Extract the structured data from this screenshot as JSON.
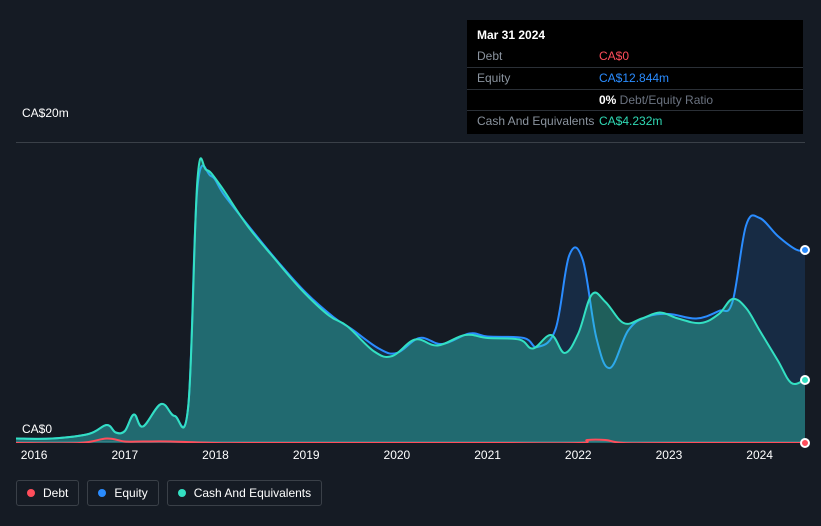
{
  "tooltip": {
    "date": "Mar 31 2024",
    "rows": [
      {
        "label": "Debt",
        "value": "CA$0",
        "color": "#ff4d5b"
      },
      {
        "label": "Equity",
        "value": "CA$12.844m",
        "color": "#2a8cff"
      },
      {
        "label": "",
        "pct": "0%",
        "ratio": " Debt/Equity Ratio"
      },
      {
        "label": "Cash And Equivalents",
        "value": "CA$4.232m",
        "color": "#2fd9b4"
      }
    ]
  },
  "chart": {
    "type": "area",
    "background_color": "#151b24",
    "grid_color": "#3a4048",
    "ymax_label": "CA$20m",
    "ymin_label": "CA$0",
    "ylim": [
      0,
      20
    ],
    "label_fontsize": 12,
    "x_years": [
      2016,
      2017,
      2018,
      2019,
      2020,
      2021,
      2022,
      2023,
      2024
    ],
    "x_range": [
      2015.8,
      2024.5
    ],
    "series": {
      "debt": {
        "color": "#ff4d5b",
        "opacity": 1,
        "line_width": 2,
        "points": [
          [
            2015.8,
            0
          ],
          [
            2016.5,
            0
          ],
          [
            2016.8,
            0.3
          ],
          [
            2017.0,
            0.1
          ],
          [
            2017.2,
            0.1
          ],
          [
            2017.5,
            0.1
          ],
          [
            2018.0,
            0
          ],
          [
            2018.5,
            0
          ],
          [
            2019,
            0
          ],
          [
            2020,
            0
          ],
          [
            2021,
            0
          ],
          [
            2022,
            0
          ],
          [
            2022.1,
            0.2
          ],
          [
            2022.3,
            0.2
          ],
          [
            2022.5,
            0
          ],
          [
            2023,
            0
          ],
          [
            2024,
            0
          ],
          [
            2024.5,
            0
          ]
        ]
      },
      "equity": {
        "color": "#2a8cff",
        "fill_opacity": 0.15,
        "line_width": 2,
        "points": [
          [
            2015.8,
            0.3
          ],
          [
            2016.2,
            0.3
          ],
          [
            2016.6,
            0.6
          ],
          [
            2016.8,
            1.2
          ],
          [
            2016.9,
            0.7
          ],
          [
            2017.0,
            0.8
          ],
          [
            2017.1,
            1.9
          ],
          [
            2017.2,
            1.1
          ],
          [
            2017.4,
            2.6
          ],
          [
            2017.55,
            1.8
          ],
          [
            2017.7,
            2.5
          ],
          [
            2017.8,
            17.0
          ],
          [
            2017.95,
            17.8
          ],
          [
            2018.1,
            16.5
          ],
          [
            2018.4,
            14.2
          ],
          [
            2018.7,
            12.0
          ],
          [
            2019.0,
            10.0
          ],
          [
            2019.3,
            8.4
          ],
          [
            2019.5,
            7.6
          ],
          [
            2019.8,
            6.3
          ],
          [
            2020.0,
            6.0
          ],
          [
            2020.25,
            7.0
          ],
          [
            2020.5,
            6.6
          ],
          [
            2020.8,
            7.3
          ],
          [
            2021.0,
            7.1
          ],
          [
            2021.4,
            7.0
          ],
          [
            2021.55,
            6.4
          ],
          [
            2021.75,
            7.6
          ],
          [
            2021.9,
            12.5
          ],
          [
            2022.05,
            12.2
          ],
          [
            2022.2,
            7.0
          ],
          [
            2022.35,
            5.0
          ],
          [
            2022.55,
            7.5
          ],
          [
            2022.75,
            8.4
          ],
          [
            2023.0,
            8.6
          ],
          [
            2023.3,
            8.3
          ],
          [
            2023.55,
            8.8
          ],
          [
            2023.7,
            9.4
          ],
          [
            2023.85,
            14.5
          ],
          [
            2024.0,
            15.0
          ],
          [
            2024.2,
            13.8
          ],
          [
            2024.4,
            12.9
          ],
          [
            2024.5,
            12.844
          ]
        ]
      },
      "cash": {
        "color": "#33e0c2",
        "fill_opacity": 0.35,
        "line_width": 2,
        "points": [
          [
            2015.8,
            0.3
          ],
          [
            2016.2,
            0.3
          ],
          [
            2016.6,
            0.6
          ],
          [
            2016.8,
            1.2
          ],
          [
            2016.9,
            0.7
          ],
          [
            2017.0,
            0.8
          ],
          [
            2017.1,
            1.9
          ],
          [
            2017.2,
            1.1
          ],
          [
            2017.4,
            2.6
          ],
          [
            2017.55,
            1.8
          ],
          [
            2017.7,
            2.5
          ],
          [
            2017.8,
            17.5
          ],
          [
            2017.9,
            18.2
          ],
          [
            2018.05,
            17.2
          ],
          [
            2018.35,
            14.5
          ],
          [
            2018.65,
            12.3
          ],
          [
            2018.95,
            10.2
          ],
          [
            2019.25,
            8.5
          ],
          [
            2019.45,
            7.8
          ],
          [
            2019.75,
            6.1
          ],
          [
            2019.95,
            5.8
          ],
          [
            2020.2,
            6.9
          ],
          [
            2020.45,
            6.5
          ],
          [
            2020.75,
            7.2
          ],
          [
            2021.0,
            7.0
          ],
          [
            2021.35,
            6.9
          ],
          [
            2021.5,
            6.3
          ],
          [
            2021.7,
            7.2
          ],
          [
            2021.85,
            6.0
          ],
          [
            2022.0,
            7.3
          ],
          [
            2022.15,
            9.9
          ],
          [
            2022.3,
            9.4
          ],
          [
            2022.5,
            8.0
          ],
          [
            2022.7,
            8.3
          ],
          [
            2022.9,
            8.7
          ],
          [
            2023.1,
            8.3
          ],
          [
            2023.35,
            8.0
          ],
          [
            2023.55,
            8.6
          ],
          [
            2023.7,
            9.6
          ],
          [
            2023.85,
            9.0
          ],
          [
            2024.0,
            7.5
          ],
          [
            2024.2,
            5.5
          ],
          [
            2024.35,
            4.0
          ],
          [
            2024.5,
            4.232
          ]
        ]
      }
    },
    "end_markers": [
      {
        "series": "equity",
        "color": "#2a8cff"
      },
      {
        "series": "cash",
        "color": "#33e0c2"
      },
      {
        "series": "debt",
        "color": "#ff4d5b"
      }
    ]
  },
  "legend": [
    {
      "label": "Debt",
      "color": "#ff4d5b"
    },
    {
      "label": "Equity",
      "color": "#2a8cff"
    },
    {
      "label": "Cash And Equivalents",
      "color": "#33e0c2"
    }
  ]
}
